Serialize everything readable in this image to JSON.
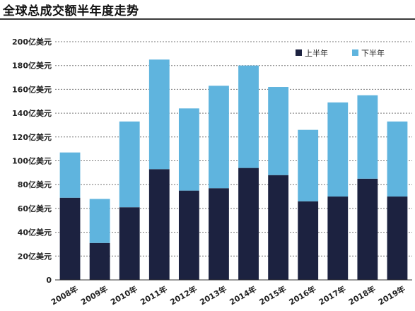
{
  "title": "全球总成交额半年度走势",
  "colors": {
    "first_half": "#1c2240",
    "second_half": "#5fb4de",
    "grid": "#777777"
  },
  "chart_data": {
    "type": "bar",
    "stacked": true,
    "categories": [
      "2008年",
      "2009年",
      "2010年",
      "2011年",
      "2012年",
      "2013年",
      "2014年",
      "2015年",
      "2016年",
      "2017年",
      "2018年",
      "2019年"
    ],
    "series": [
      {
        "name": "上半年",
        "values": [
          69,
          31,
          61,
          93,
          75,
          77,
          94,
          88,
          66,
          70,
          85,
          70
        ]
      },
      {
        "name": "下半年",
        "values": [
          38,
          37,
          72,
          92,
          69,
          86,
          86,
          74,
          60,
          79,
          70,
          63
        ]
      }
    ],
    "yticks": [
      "0",
      "20亿美元",
      "40亿美元",
      "60亿美元",
      "80亿美元",
      "100亿美元",
      "120亿美元",
      "140亿美元",
      "160亿美元",
      "180亿美元",
      "200亿美元"
    ],
    "ylim": [
      0,
      200
    ],
    "grid": true,
    "legend_position": "top-right"
  }
}
